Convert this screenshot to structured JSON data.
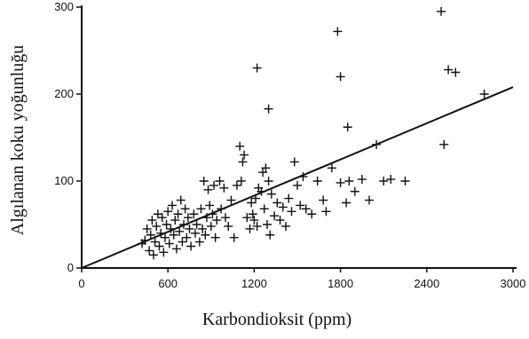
{
  "chart_data": {
    "type": "scatter",
    "title": "",
    "xlabel": "Karbondioksit (ppm)",
    "ylabel": "Algılanan koku yoğunluğu",
    "xlim": [
      0,
      3000
    ],
    "ylim": [
      0,
      300
    ],
    "x_ticks": [
      0,
      600,
      1200,
      1800,
      2400,
      3000
    ],
    "x_tick_labels": [
      "0",
      "600",
      "1200",
      "1800",
      "2400",
      "3000"
    ],
    "y_ticks": [
      0,
      100,
      200,
      300
    ],
    "y_tick_labels": [
      "0",
      "100",
      "200",
      "300"
    ],
    "grid": false,
    "marker": "plus",
    "colors": {
      "ink": "#111111",
      "background": "#ffffff"
    },
    "trend_line": {
      "x": [
        0,
        3000
      ],
      "y": [
        0,
        208
      ]
    },
    "series": [
      {
        "points": [
          [
            420,
            28
          ],
          [
            440,
            32
          ],
          [
            455,
            45
          ],
          [
            470,
            20
          ],
          [
            480,
            38
          ],
          [
            490,
            55
          ],
          [
            500,
            15
          ],
          [
            510,
            30
          ],
          [
            520,
            48
          ],
          [
            530,
            62
          ],
          [
            540,
            25
          ],
          [
            550,
            40
          ],
          [
            560,
            58
          ],
          [
            570,
            18
          ],
          [
            580,
            35
          ],
          [
            590,
            50
          ],
          [
            600,
            65
          ],
          [
            610,
            28
          ],
          [
            620,
            45
          ],
          [
            630,
            72
          ],
          [
            640,
            38
          ],
          [
            650,
            55
          ],
          [
            660,
            22
          ],
          [
            670,
            62
          ],
          [
            680,
            42
          ],
          [
            690,
            78
          ],
          [
            700,
            30
          ],
          [
            710,
            50
          ],
          [
            720,
            68
          ],
          [
            730,
            35
          ],
          [
            740,
            58
          ],
          [
            750,
            45
          ],
          [
            760,
            25
          ],
          [
            780,
            62
          ],
          [
            790,
            40
          ],
          [
            800,
            50
          ],
          [
            820,
            30
          ],
          [
            830,
            68
          ],
          [
            840,
            45
          ],
          [
            850,
            100
          ],
          [
            860,
            38
          ],
          [
            870,
            58
          ],
          [
            880,
            90
          ],
          [
            890,
            72
          ],
          [
            900,
            48
          ],
          [
            910,
            62
          ],
          [
            920,
            95
          ],
          [
            930,
            35
          ],
          [
            940,
            55
          ],
          [
            960,
            100
          ],
          [
            970,
            68
          ],
          [
            990,
            92
          ],
          [
            1000,
            58
          ],
          [
            1020,
            48
          ],
          [
            1040,
            78
          ],
          [
            1060,
            35
          ],
          [
            1080,
            95
          ],
          [
            1100,
            140
          ],
          [
            1110,
            100
          ],
          [
            1120,
            122
          ],
          [
            1130,
            130
          ],
          [
            1150,
            58
          ],
          [
            1170,
            45
          ],
          [
            1180,
            75
          ],
          [
            1190,
            62
          ],
          [
            1200,
            55
          ],
          [
            1210,
            80
          ],
          [
            1220,
            48
          ],
          [
            1230,
            92
          ],
          [
            1250,
            88
          ],
          [
            1260,
            110
          ],
          [
            1270,
            68
          ],
          [
            1280,
            115
          ],
          [
            1290,
            50
          ],
          [
            1300,
            100
          ],
          [
            1310,
            38
          ],
          [
            1320,
            85
          ],
          [
            1340,
            60
          ],
          [
            1360,
            75
          ],
          [
            1380,
            55
          ],
          [
            1400,
            70
          ],
          [
            1420,
            48
          ],
          [
            1440,
            80
          ],
          [
            1460,
            65
          ],
          [
            1480,
            122
          ],
          [
            1500,
            95
          ],
          [
            1520,
            72
          ],
          [
            1540,
            105
          ],
          [
            1560,
            68
          ],
          [
            1600,
            62
          ],
          [
            1640,
            100
          ],
          [
            1680,
            78
          ],
          [
            1700,
            65
          ],
          [
            1740,
            115
          ],
          [
            1800,
            98
          ],
          [
            1840,
            75
          ],
          [
            1860,
            100
          ],
          [
            1900,
            88
          ],
          [
            1950,
            102
          ],
          [
            2000,
            78
          ],
          [
            2050,
            142
          ],
          [
            2100,
            100
          ],
          [
            2150,
            102
          ],
          [
            1220,
            230
          ],
          [
            1300,
            183
          ],
          [
            1780,
            272
          ],
          [
            1800,
            220
          ],
          [
            1850,
            162
          ],
          [
            2500,
            295
          ],
          [
            2550,
            228
          ],
          [
            2600,
            225
          ],
          [
            2800,
            200
          ],
          [
            2520,
            142
          ],
          [
            2250,
            100
          ]
        ]
      }
    ]
  }
}
